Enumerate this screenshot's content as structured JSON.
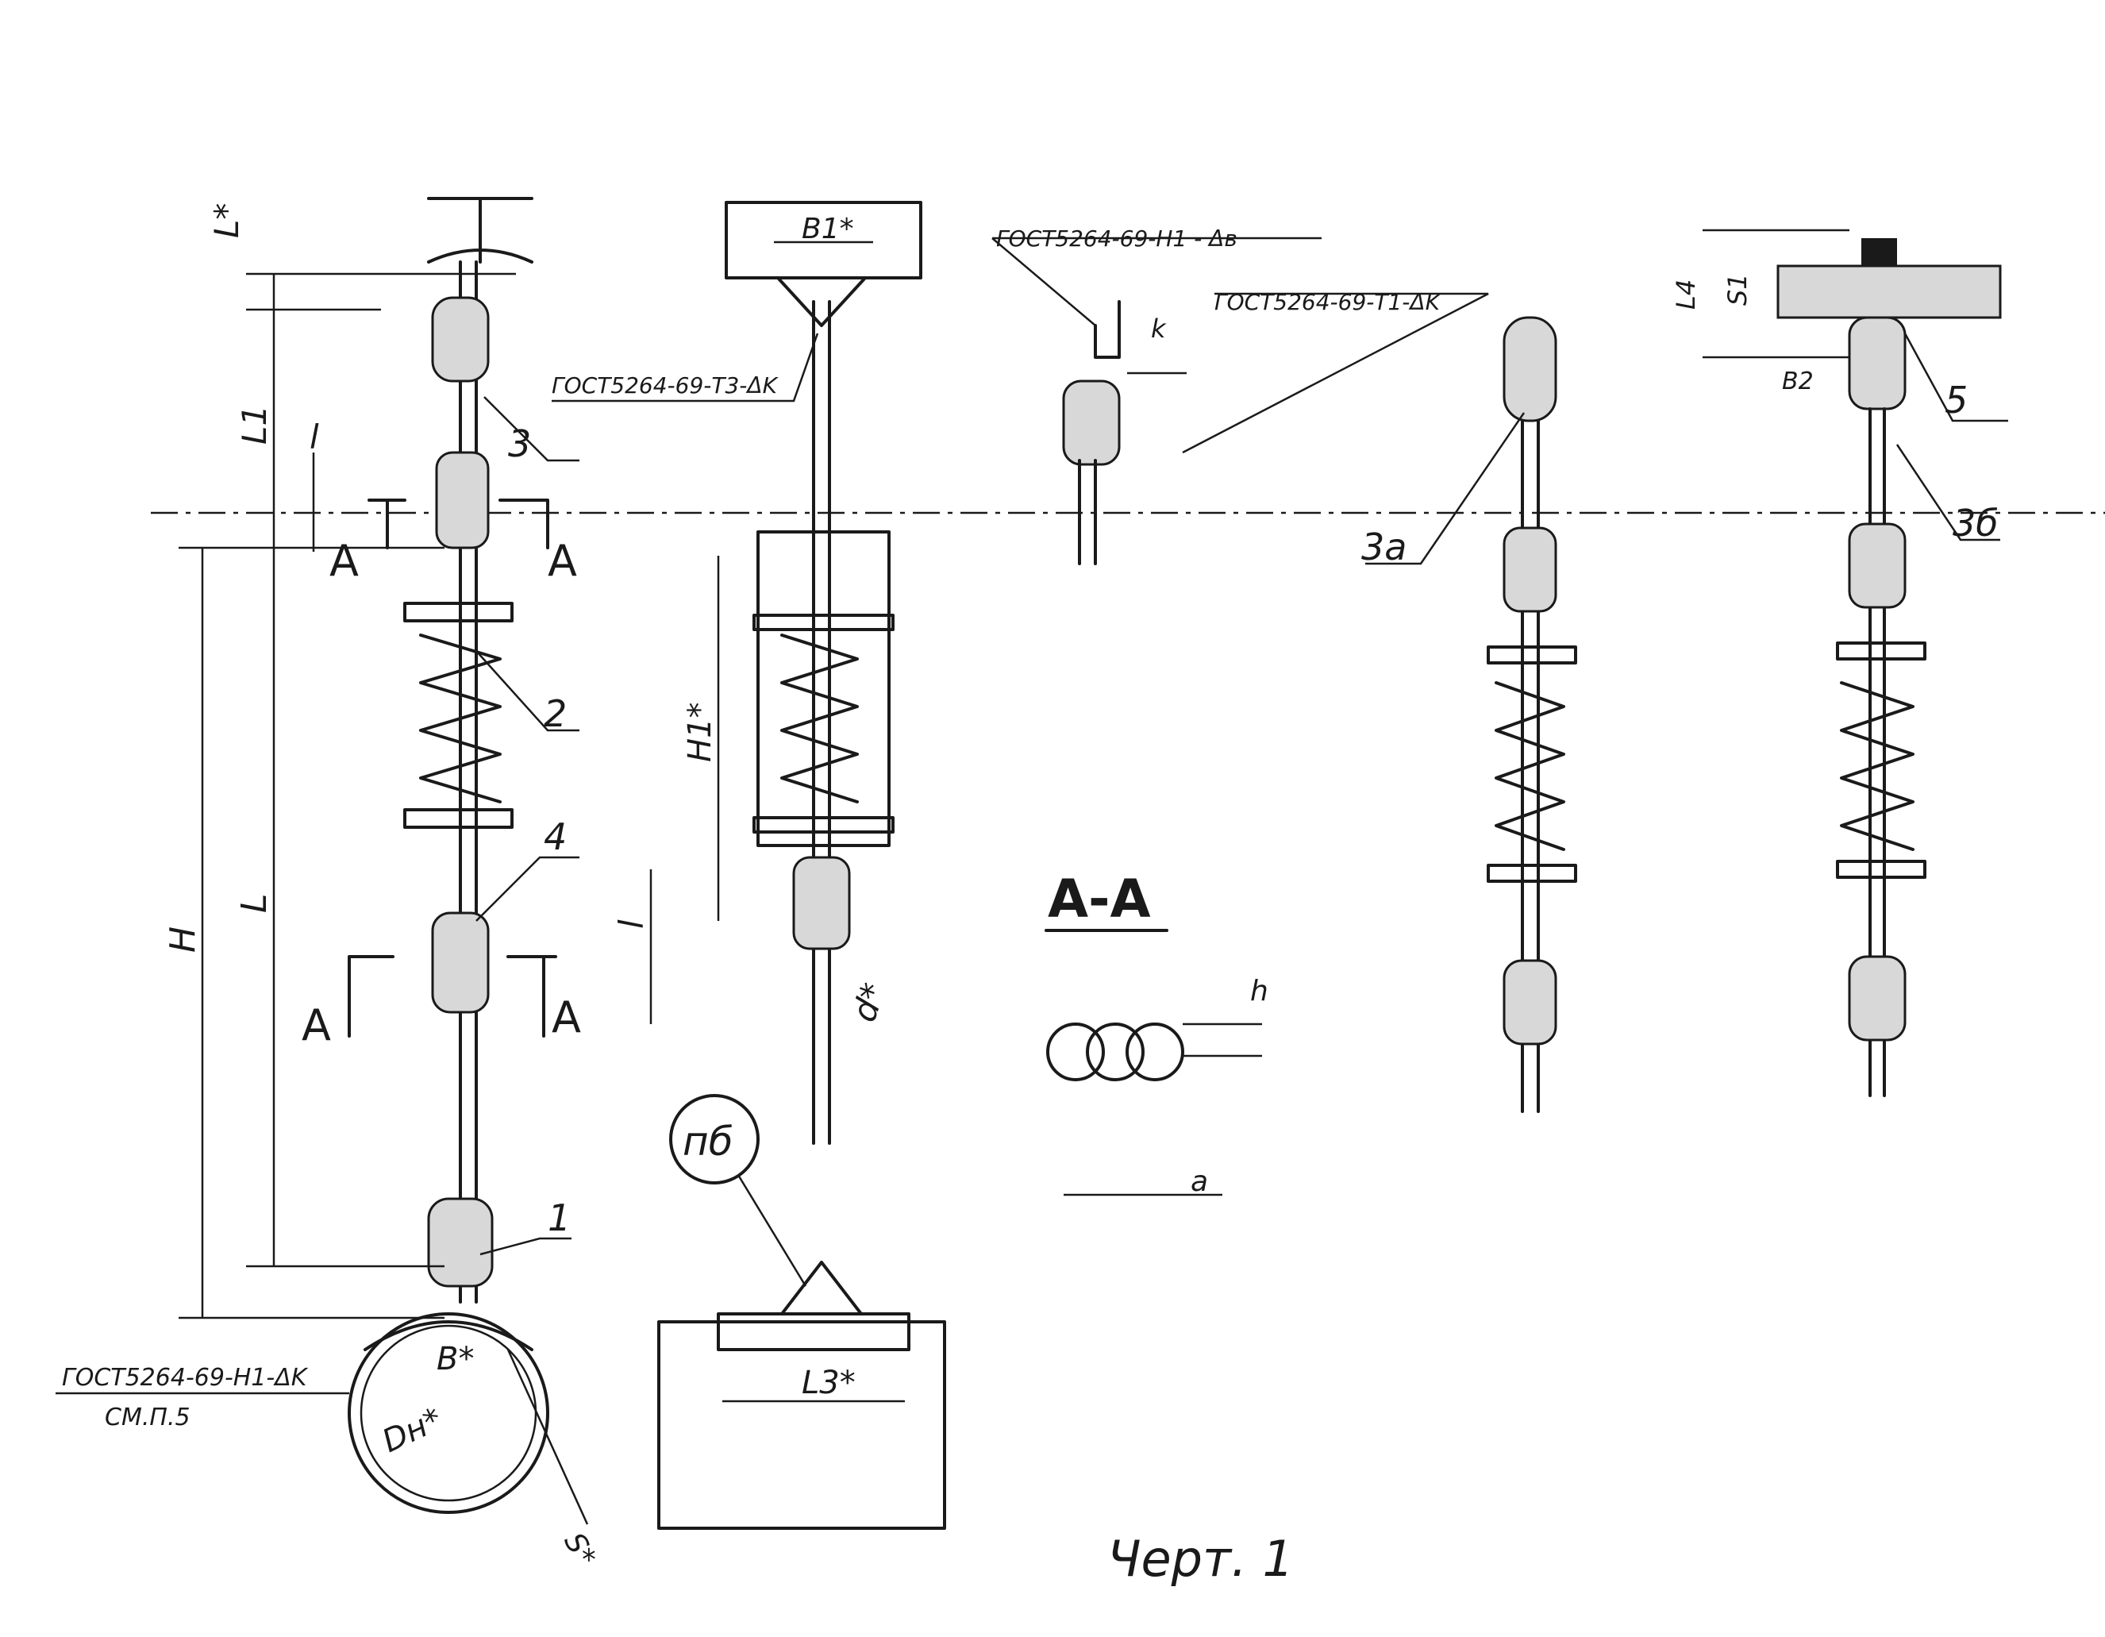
{
  "labels": {
    "gost_t3": "ГОСТ5264-69-Т3-ΔK",
    "gost_n1_b": "ГОСТ5264-69-Н1 - Δв",
    "gost_t1": "ГОСТ5264-69-Т1-ΔK",
    "gost_n1_k": "ГОСТ5264-69-Н1-ΔK",
    "sm_p5": "СМ.П.5",
    "section_a": "A",
    "section_aa": "A-A",
    "caption": "Черт. 1",
    "circle_label": "пб",
    "pos_1": "1",
    "pos_2": "2",
    "pos_3": "3",
    "pos_4": "4",
    "pos_5": "5",
    "pos_3a": "3а",
    "pos_3b": "3б"
  },
  "dimensions": {
    "l_star": "L*",
    "L1": "L1",
    "l_small": "l",
    "H": "H",
    "L": "L",
    "B1_star": "B1*",
    "H1_star": "H1*",
    "d_star": "d*",
    "k": "k",
    "L4": "L4",
    "S1": "S1",
    "B2": "B2",
    "h": "h",
    "a": "a",
    "B_star": "B*",
    "Dn_star": "Dн*",
    "S_star": "S*",
    "L3_star": "L3*"
  }
}
